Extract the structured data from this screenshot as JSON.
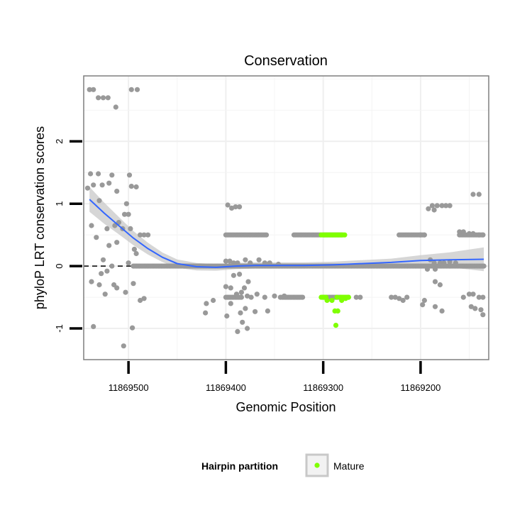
{
  "chart_data": {
    "type": "scatter",
    "title": "Conservation",
    "xlabel": "Genomic Position",
    "ylabel": "phyloP LRT conservation scores",
    "x_reversed": true,
    "xlim": [
      11869546,
      11869130
    ],
    "ylim": [
      -1.5,
      3.05
    ],
    "x_ticks": [
      11869500,
      11869400,
      11869300,
      11869200
    ],
    "x_tick_labels": [
      "11869500",
      "11869400",
      "11869300",
      "11869200"
    ],
    "y_ticks": [
      -1,
      0,
      1,
      2
    ],
    "y_tick_labels": [
      "-1",
      "0",
      "1",
      "2"
    ],
    "reference_line": {
      "y": 0,
      "style": "dashed"
    },
    "legend": {
      "title": "Hairpin partition",
      "position": "bottom",
      "entries": [
        {
          "label": "Mature",
          "color": "#7fff00"
        }
      ]
    },
    "colors": {
      "other": "#999999",
      "mature": "#7fff00",
      "smooth": "#3366ff",
      "band": "#c8c8c8"
    },
    "series": [
      {
        "name": "Other",
        "color": "#999999",
        "points": [
          [
            11869540,
            2.83
          ],
          [
            11869536,
            2.83
          ],
          [
            11869531,
            2.7
          ],
          [
            11869526,
            2.7
          ],
          [
            11869521,
            2.7
          ],
          [
            11869513,
            2.55
          ],
          [
            11869497,
            2.83
          ],
          [
            11869491,
            2.83
          ],
          [
            11869539,
            1.48
          ],
          [
            11869531,
            1.48
          ],
          [
            11869517,
            1.46
          ],
          [
            11869499,
            1.46
          ],
          [
            11869536,
            1.3
          ],
          [
            11869527,
            1.3
          ],
          [
            11869520,
            1.33
          ],
          [
            11869512,
            1.2
          ],
          [
            11869497,
            1.28
          ],
          [
            11869492,
            1.27
          ],
          [
            11869502,
            1.0
          ],
          [
            11869542,
            1.25
          ],
          [
            11869530,
            1.05
          ],
          [
            11869504,
            0.83
          ],
          [
            11869500,
            0.83
          ],
          [
            11869538,
            0.65
          ],
          [
            11869533,
            0.46
          ],
          [
            11869522,
            0.6
          ],
          [
            11869514,
            0.65
          ],
          [
            11869510,
            0.7
          ],
          [
            11869506,
            0.6
          ],
          [
            11869498,
            0.6
          ],
          [
            11869488,
            0.5
          ],
          [
            11869484,
            0.5
          ],
          [
            11869480,
            0.5
          ],
          [
            11869520,
            0.33
          ],
          [
            11869512,
            0.38
          ],
          [
            11869494,
            0.27
          ],
          [
            11869492,
            0.2
          ],
          [
            11869526,
            0.1
          ],
          [
            11869517,
            0.0
          ],
          [
            11869500,
            0.05
          ],
          [
            11869528,
            -0.12
          ],
          [
            11869522,
            -0.08
          ],
          [
            11869538,
            -0.25
          ],
          [
            11869530,
            -0.3
          ],
          [
            11869515,
            -0.3
          ],
          [
            11869512,
            -0.35
          ],
          [
            11869503,
            -0.42
          ],
          [
            11869524,
            -0.45
          ],
          [
            11869495,
            -0.28
          ],
          [
            11869488,
            -0.55
          ],
          [
            11869484,
            -0.52
          ],
          [
            11869536,
            -0.97
          ],
          [
            11869496,
            -0.99
          ],
          [
            11869505,
            -1.28
          ],
          [
            11869398,
            0.98
          ],
          [
            11869394,
            0.93
          ],
          [
            11869390,
            0.95
          ],
          [
            11869386,
            0.95
          ],
          [
            11869400,
            0.08
          ],
          [
            11869396,
            0.08
          ],
          [
            11869392,
            0.05
          ],
          [
            11869388,
            0.05
          ],
          [
            11869380,
            0.1
          ],
          [
            11869375,
            0.05
          ],
          [
            11869366,
            0.1
          ],
          [
            11869360,
            0.05
          ],
          [
            11869355,
            0.05
          ],
          [
            11869346,
            0.03
          ],
          [
            11869392,
            -0.15
          ],
          [
            11869386,
            -0.13
          ],
          [
            11869377,
            -0.25
          ],
          [
            11869381,
            -0.35
          ],
          [
            11869400,
            -0.33
          ],
          [
            11869395,
            -0.35
          ],
          [
            11869389,
            -0.45
          ],
          [
            11869384,
            -0.42
          ],
          [
            11869378,
            -0.48
          ],
          [
            11869374,
            -0.5
          ],
          [
            11869368,
            -0.45
          ],
          [
            11869395,
            -0.6
          ],
          [
            11869385,
            -0.75
          ],
          [
            11869380,
            -0.68
          ],
          [
            11869370,
            -0.73
          ],
          [
            11869357,
            -0.72
          ],
          [
            11869399,
            -0.8
          ],
          [
            11869383,
            -0.9
          ],
          [
            11869388,
            -1.05
          ],
          [
            11869378,
            -1.0
          ],
          [
            11869420,
            -0.6
          ],
          [
            11869413,
            -0.55
          ],
          [
            11869421,
            -0.75
          ],
          [
            11869360,
            -0.5
          ],
          [
            11869350,
            -0.48
          ],
          [
            11869344,
            -0.5
          ],
          [
            11869340,
            -0.48
          ],
          [
            11869266,
            -0.5
          ],
          [
            11869262,
            -0.5
          ],
          [
            11869188,
            0.97
          ],
          [
            11869183,
            0.97
          ],
          [
            11869178,
            0.97
          ],
          [
            11869174,
            0.97
          ],
          [
            11869170,
            0.97
          ],
          [
            11869192,
            0.92
          ],
          [
            11869186,
            0.9
          ],
          [
            11869146,
            1.15
          ],
          [
            11869140,
            1.15
          ],
          [
            11869160,
            0.55
          ],
          [
            11869156,
            0.55
          ],
          [
            11869150,
            0.52
          ],
          [
            11869146,
            0.52
          ],
          [
            11869140,
            0.5
          ],
          [
            11869136,
            0.5
          ],
          [
            11869200,
            0.5
          ],
          [
            11869196,
            0.5
          ],
          [
            11869190,
            0.1
          ],
          [
            11869186,
            0.05
          ],
          [
            11869180,
            0.05
          ],
          [
            11869176,
            0.05
          ],
          [
            11869170,
            0.07
          ],
          [
            11869164,
            0.05
          ],
          [
            11869193,
            -0.05
          ],
          [
            11869185,
            -0.05
          ],
          [
            11869180,
            -0.3
          ],
          [
            11869185,
            -0.25
          ],
          [
            11869196,
            -0.55
          ],
          [
            11869150,
            -0.45
          ],
          [
            11869146,
            -0.45
          ],
          [
            11869140,
            -0.5
          ],
          [
            11869136,
            -0.5
          ],
          [
            11869156,
            -0.5
          ],
          [
            11869198,
            -0.62
          ],
          [
            11869185,
            -0.65
          ],
          [
            11869178,
            -0.72
          ],
          [
            11869148,
            -0.65
          ],
          [
            11869144,
            -0.68
          ],
          [
            11869138,
            -0.7
          ],
          [
            11869136,
            -0.78
          ],
          [
            11869230,
            -0.5
          ],
          [
            11869226,
            -0.5
          ],
          [
            11869222,
            -0.52
          ],
          [
            11869218,
            -0.55
          ],
          [
            11869214,
            -0.5
          ]
        ],
        "runs": [
          {
            "from": 11869400,
            "to": 11869358,
            "y": 0.5
          },
          {
            "from": 11869330,
            "to": 11869302,
            "y": 0.5
          },
          {
            "from": 11869300,
            "to": 11869280,
            "y": 0.5
          },
          {
            "from": 11869222,
            "to": 11869196,
            "y": 0.5
          },
          {
            "from": 11869160,
            "to": 11869136,
            "y": 0.5
          },
          {
            "from": 11869495,
            "to": 11869135,
            "y": 0.0
          },
          {
            "from": 11869342,
            "to": 11869320,
            "y": -0.5
          },
          {
            "from": 11869300,
            "to": 11869282,
            "y": -0.5
          },
          {
            "from": 11869400,
            "to": 11869384,
            "y": -0.5
          }
        ]
      },
      {
        "name": "Mature",
        "color": "#7fff00",
        "points": [
          [
            11869296,
            -0.55
          ],
          [
            11869291,
            -0.55
          ],
          [
            11869286,
            -0.5
          ],
          [
            11869281,
            -0.55
          ],
          [
            11869277,
            -0.52
          ],
          [
            11869274,
            -0.5
          ],
          [
            11869288,
            -0.72
          ],
          [
            11869285,
            -0.72
          ],
          [
            11869287,
            -0.95
          ]
        ],
        "runs": [
          {
            "from": 11869302,
            "to": 11869278,
            "y": 0.5
          },
          {
            "from": 11869302,
            "to": 11869296,
            "y": -0.5
          },
          {
            "from": 11869282,
            "to": 11869274,
            "y": -0.5
          }
        ]
      }
    ],
    "smooth_line": {
      "method": "loess",
      "points": [
        [
          11869540,
          1.07
        ],
        [
          11869525,
          0.85
        ],
        [
          11869510,
          0.65
        ],
        [
          11869495,
          0.45
        ],
        [
          11869480,
          0.28
        ],
        [
          11869465,
          0.14
        ],
        [
          11869450,
          0.04
        ],
        [
          11869430,
          -0.01
        ],
        [
          11869410,
          -0.02
        ],
        [
          11869390,
          0.0
        ],
        [
          11869370,
          0.01
        ],
        [
          11869350,
          0.01
        ],
        [
          11869320,
          0.01
        ],
        [
          11869290,
          0.02
        ],
        [
          11869260,
          0.04
        ],
        [
          11869230,
          0.06
        ],
        [
          11869200,
          0.09
        ],
        [
          11869170,
          0.1
        ],
        [
          11869135,
          0.11
        ]
      ],
      "band_half_width": [
        [
          11869540,
          0.2
        ],
        [
          11869500,
          0.12
        ],
        [
          11869460,
          0.07
        ],
        [
          11869400,
          0.05
        ],
        [
          11869300,
          0.05
        ],
        [
          11869230,
          0.06
        ],
        [
          11869180,
          0.1
        ],
        [
          11869135,
          0.19
        ]
      ]
    }
  }
}
